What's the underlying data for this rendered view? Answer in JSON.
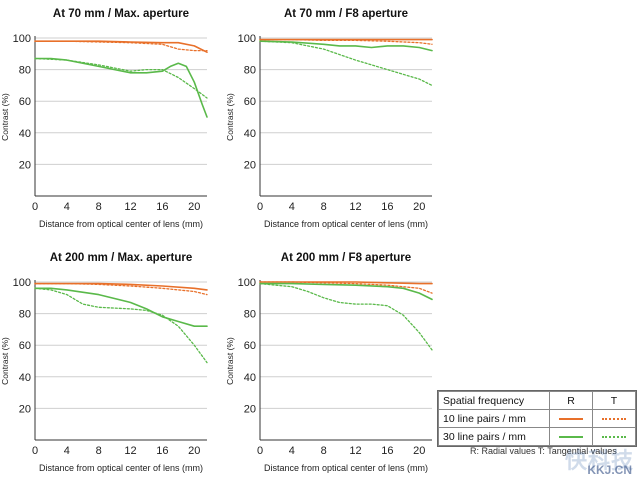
{
  "colors": {
    "r10": "#e8702a",
    "t10": "#e8702a",
    "r30": "#5ab94a",
    "t30": "#5ab94a"
  },
  "chart_data": [
    {
      "type": "line",
      "title": "At 70 mm / Max. aperture",
      "xlabel": "Distance from optical center of lens (mm)",
      "ylabel": "Contrast (%)",
      "xlim": [
        0,
        21.6
      ],
      "ylim": [
        0,
        100
      ],
      "xticks": [
        0,
        4,
        8,
        12,
        16,
        20
      ],
      "yticks": [
        20,
        40,
        60,
        80,
        100
      ],
      "series": [
        {
          "name": "10 line pairs / mm R",
          "style": "solid-orange",
          "x": [
            0,
            4,
            8,
            12,
            16,
            18,
            20,
            21.6
          ],
          "y": [
            98,
            98,
            98,
            97.5,
            97,
            97,
            95,
            91
          ]
        },
        {
          "name": "10 line pairs / mm T",
          "style": "dotted-orange",
          "x": [
            0,
            4,
            8,
            12,
            16,
            18,
            20,
            21.6
          ],
          "y": [
            98,
            98,
            97.5,
            97,
            96,
            93,
            92,
            92
          ]
        },
        {
          "name": "30 line pairs / mm R",
          "style": "solid-green",
          "x": [
            0,
            2,
            4,
            8,
            10,
            12,
            14,
            16,
            17,
            18,
            19,
            20,
            21,
            21.6
          ],
          "y": [
            87,
            87,
            86,
            82,
            80,
            78,
            78,
            79,
            82,
            84,
            82,
            72,
            58,
            50
          ]
        },
        {
          "name": "30 line pairs / mm T",
          "style": "dotted-green",
          "x": [
            0,
            4,
            8,
            12,
            14,
            16,
            18,
            20,
            21.6
          ],
          "y": [
            87,
            86,
            83,
            79,
            80,
            80,
            75,
            68,
            62
          ]
        }
      ]
    },
    {
      "type": "line",
      "title": "At 70 mm / F8 aperture",
      "xlabel": "Distance from optical center of lens (mm)",
      "ylabel": "Contrast (%)",
      "xlim": [
        0,
        21.6
      ],
      "ylim": [
        0,
        100
      ],
      "xticks": [
        0,
        4,
        8,
        12,
        16,
        20
      ],
      "yticks": [
        20,
        40,
        60,
        80,
        100
      ],
      "series": [
        {
          "name": "10 line pairs / mm R",
          "style": "solid-orange",
          "x": [
            0,
            4,
            8,
            12,
            16,
            20,
            21.6
          ],
          "y": [
            99,
            99,
            99,
            99,
            99,
            99,
            99
          ]
        },
        {
          "name": "10 line pairs / mm T",
          "style": "dotted-orange",
          "x": [
            0,
            4,
            8,
            12,
            16,
            20,
            21.6
          ],
          "y": [
            99,
            99,
            98.5,
            98.5,
            98,
            97,
            96
          ]
        },
        {
          "name": "30 line pairs / mm R",
          "style": "solid-green",
          "x": [
            0,
            4,
            8,
            10,
            12,
            14,
            16,
            18,
            20,
            21.6
          ],
          "y": [
            98,
            97.5,
            96,
            95,
            95,
            94,
            95,
            95,
            94,
            92
          ]
        },
        {
          "name": "30 line pairs / mm T",
          "style": "dotted-green",
          "x": [
            0,
            4,
            8,
            12,
            16,
            20,
            21.6
          ],
          "y": [
            98,
            97,
            93,
            86,
            80,
            74,
            70
          ]
        }
      ]
    },
    {
      "type": "line",
      "title": "At 200 mm / Max. aperture",
      "xlabel": "Distance from optical center of lens (mm)",
      "ylabel": "Contrast (%)",
      "xlim": [
        0,
        21.6
      ],
      "ylim": [
        0,
        100
      ],
      "xticks": [
        0,
        4,
        8,
        12,
        16,
        20
      ],
      "yticks": [
        20,
        40,
        60,
        80,
        100
      ],
      "series": [
        {
          "name": "10 line pairs / mm R",
          "style": "solid-orange",
          "x": [
            0,
            4,
            8,
            12,
            16,
            20,
            21.6
          ],
          "y": [
            99,
            99,
            99,
            98.5,
            97.5,
            96,
            95
          ]
        },
        {
          "name": "10 line pairs / mm T",
          "style": "dotted-orange",
          "x": [
            0,
            4,
            8,
            12,
            16,
            20,
            21.6
          ],
          "y": [
            99,
            99,
            98.5,
            97.5,
            96,
            94,
            92
          ]
        },
        {
          "name": "30 line pairs / mm R",
          "style": "solid-green",
          "x": [
            0,
            2,
            4,
            8,
            12,
            14,
            16,
            18,
            20,
            21.6
          ],
          "y": [
            96,
            96,
            95,
            92,
            87,
            83,
            78,
            75,
            72,
            72
          ]
        },
        {
          "name": "30 line pairs / mm T",
          "style": "dotted-green",
          "x": [
            0,
            2,
            4,
            6,
            8,
            12,
            14,
            16,
            18,
            20,
            21.6
          ],
          "y": [
            96,
            95,
            92,
            86,
            84,
            83,
            82,
            79,
            72,
            60,
            49
          ]
        }
      ]
    },
    {
      "type": "line",
      "title": "At 200 mm / F8 aperture",
      "xlabel": "Distance from optical center of lens (mm)",
      "ylabel": "Contrast (%)",
      "xlim": [
        0,
        21.6
      ],
      "ylim": [
        0,
        100
      ],
      "xticks": [
        0,
        4,
        8,
        12,
        16,
        20
      ],
      "yticks": [
        20,
        40,
        60,
        80,
        100
      ],
      "series": [
        {
          "name": "10 line pairs / mm R",
          "style": "solid-orange",
          "x": [
            0,
            4,
            8,
            12,
            16,
            20,
            21.6
          ],
          "y": [
            100,
            100,
            100,
            100,
            99.5,
            99,
            99
          ]
        },
        {
          "name": "10 line pairs / mm T",
          "style": "dotted-orange",
          "x": [
            0,
            4,
            8,
            12,
            16,
            20,
            21.6
          ],
          "y": [
            100,
            100,
            99.5,
            99,
            98,
            96,
            93
          ]
        },
        {
          "name": "30 line pairs / mm R",
          "style": "solid-green",
          "x": [
            0,
            4,
            8,
            12,
            16,
            18,
            20,
            21.6
          ],
          "y": [
            99,
            99,
            98.5,
            98,
            97,
            96,
            93,
            89
          ]
        },
        {
          "name": "30 line pairs / mm T",
          "style": "dotted-green",
          "x": [
            0,
            2,
            4,
            6,
            8,
            10,
            12,
            14,
            16,
            18,
            20,
            21.6
          ],
          "y": [
            99,
            98,
            97,
            94,
            90,
            87,
            86,
            86,
            85,
            79,
            68,
            57
          ]
        }
      ]
    }
  ],
  "legend": {
    "header": "Spatial frequency",
    "col_r": "R",
    "col_t": "T",
    "row1": "10 line pairs / mm",
    "row2": "30 line pairs / mm"
  },
  "note": "R: Radial values  T: Tangential values",
  "watermark": "快科技",
  "watermark_url": "KKJ.CN"
}
